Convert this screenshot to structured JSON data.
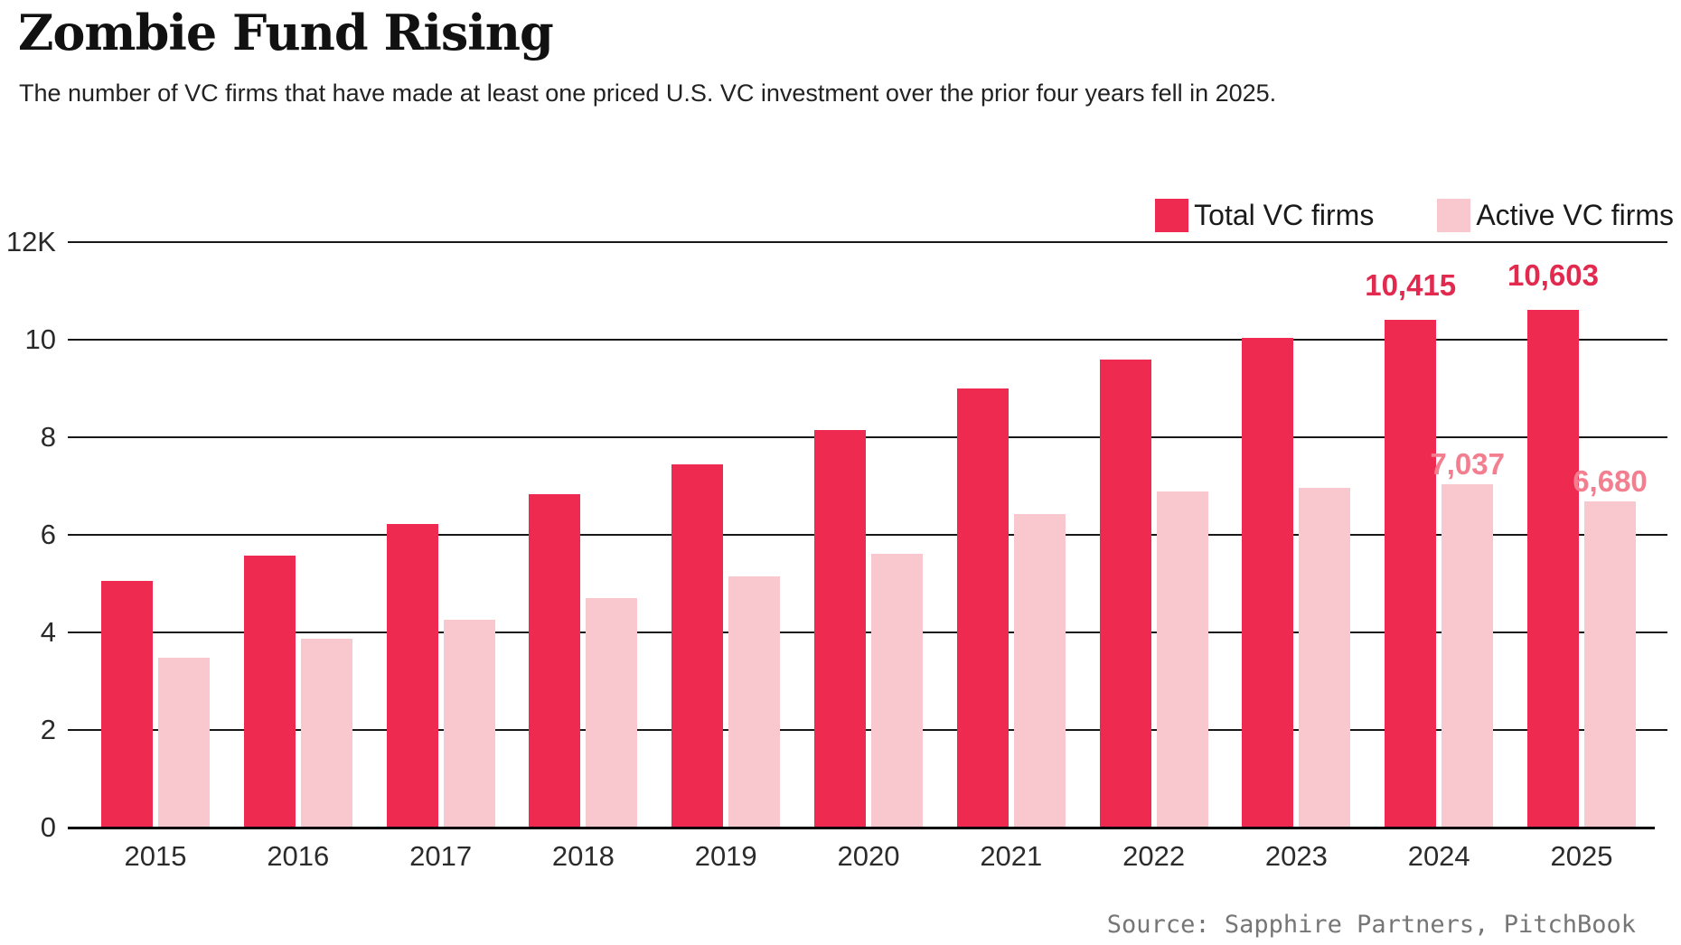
{
  "header": {
    "title": "Zombie Fund Rising",
    "subtitle": "The number of VC firms that have made at least one priced U.S. VC investment over the prior four years fell in 2025."
  },
  "source": "Source: Sapphire Partners, PitchBook",
  "colors": {
    "total_bar": "#EE2A50",
    "active_bar": "#F9C8CE",
    "total_label_text": "#E2294E",
    "active_label_text": "#F27E8F",
    "gridline": "#181818",
    "axis_line": "#000000",
    "tick_text": "#2A2A2A",
    "source_text": "#767676"
  },
  "chart_data": {
    "type": "bar",
    "title": "Zombie Fund Rising",
    "subtitle": "The number of VC firms that have made at least one priced U.S. VC investment over the prior four years fell in 2025.",
    "categories": [
      "2015",
      "2016",
      "2017",
      "2018",
      "2019",
      "2020",
      "2021",
      "2022",
      "2023",
      "2024",
      "2025"
    ],
    "series": [
      {
        "name": "Total VC firms",
        "color": "#EE2A50",
        "label_color": "#E2294E",
        "values": [
          5050,
          5570,
          6220,
          6840,
          7450,
          8150,
          9000,
          9600,
          10040,
          10415,
          10603
        ]
      },
      {
        "name": "Active VC firms",
        "color": "#F9C8CE",
        "label_color": "#F27E8F",
        "values": [
          3480,
          3870,
          4260,
          4710,
          5150,
          5610,
          6420,
          6880,
          6960,
          7037,
          6680
        ]
      }
    ],
    "annotations": [
      {
        "series": 0,
        "index": 9,
        "text": "10,415"
      },
      {
        "series": 0,
        "index": 10,
        "text": "10,603"
      },
      {
        "series": 1,
        "index": 9,
        "text": "7,037"
      },
      {
        "series": 1,
        "index": 10,
        "text": "6,680"
      }
    ],
    "xlabel": "",
    "ylabel": "",
    "ylim": [
      0,
      12000
    ],
    "y_ticks": [
      {
        "value": 0,
        "label": "0"
      },
      {
        "value": 2000,
        "label": "2"
      },
      {
        "value": 4000,
        "label": "4"
      },
      {
        "value": 6000,
        "label": "6"
      },
      {
        "value": 8000,
        "label": "8"
      },
      {
        "value": 10000,
        "label": "10"
      },
      {
        "value": 12000,
        "label": "12K"
      }
    ],
    "grid": true,
    "legend_position": "top-right",
    "source": "Source: Sapphire Partners, PitchBook"
  }
}
